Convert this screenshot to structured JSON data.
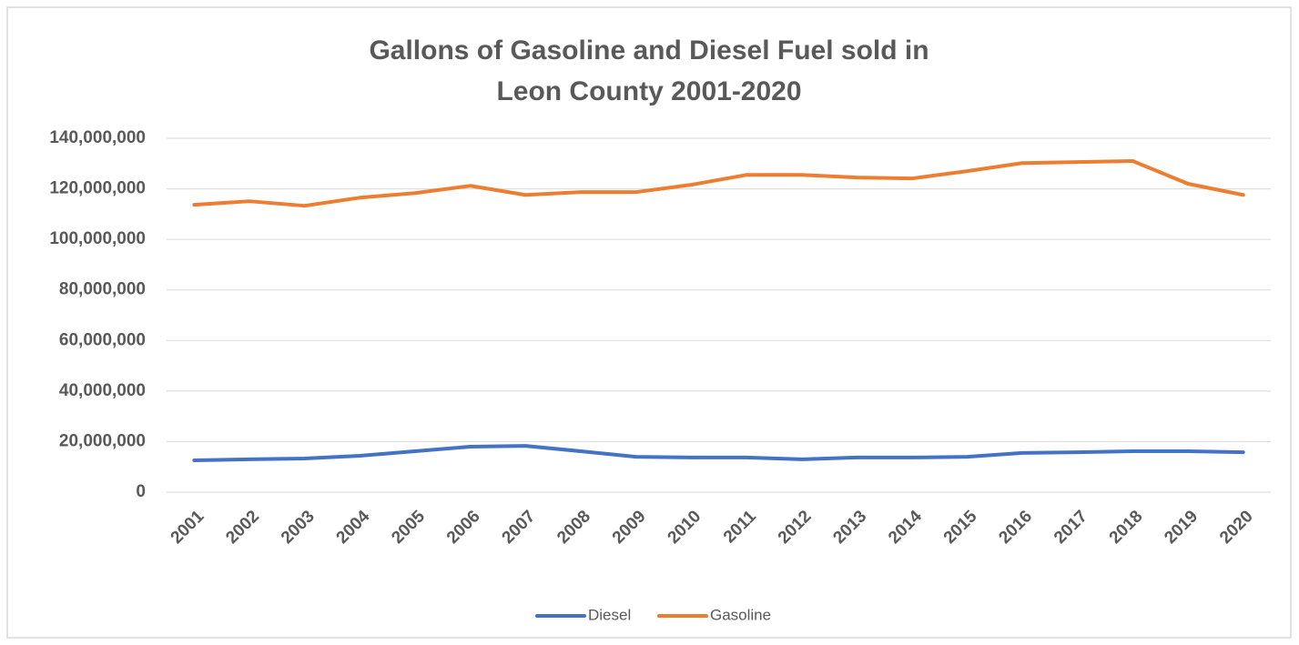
{
  "chart_data": {
    "type": "line",
    "title": [
      "Gallons of Gasoline and Diesel Fuel sold in",
      "Leon County 2001-2020"
    ],
    "categories": [
      "2001",
      "2002",
      "2003",
      "2004",
      "2005",
      "2006",
      "2007",
      "2008",
      "2009",
      "2010",
      "2011",
      "2012",
      "2013",
      "2014",
      "2015",
      "2016",
      "2017",
      "2018",
      "2019",
      "2020"
    ],
    "series": [
      {
        "name": "Diesel",
        "color": "#4472c4",
        "values": [
          12600000,
          13000000,
          13300000,
          14400000,
          16200000,
          18000000,
          18300000,
          16200000,
          14000000,
          13700000,
          13700000,
          13000000,
          13700000,
          13700000,
          14000000,
          15500000,
          15800000,
          16200000,
          16200000,
          15800000
        ]
      },
      {
        "name": "Gasoline",
        "color": "#ed7d31",
        "values": [
          113700000,
          115100000,
          113300000,
          116500000,
          118300000,
          121200000,
          117600000,
          118700000,
          118700000,
          121600000,
          125500000,
          125500000,
          124500000,
          124100000,
          127000000,
          130200000,
          130600000,
          131000000,
          122000000,
          117600000
        ]
      }
    ],
    "ylim": [
      0,
      140000000
    ],
    "yticks": [
      0,
      {
        "value": 20000000,
        "label": "20,000,000"
      },
      {
        "value": 40000000,
        "label": "40,000,000"
      },
      {
        "value": 60000000,
        "label": "60,000,000"
      },
      {
        "value": 80000000,
        "label": "80,000,000"
      },
      {
        "value": 100000000,
        "label": "100,000,000"
      },
      {
        "value": 120000000,
        "label": "120,000,000"
      },
      {
        "value": 140000000,
        "label": "140,000,000"
      }
    ],
    "grid": true,
    "legend": "bottom"
  }
}
